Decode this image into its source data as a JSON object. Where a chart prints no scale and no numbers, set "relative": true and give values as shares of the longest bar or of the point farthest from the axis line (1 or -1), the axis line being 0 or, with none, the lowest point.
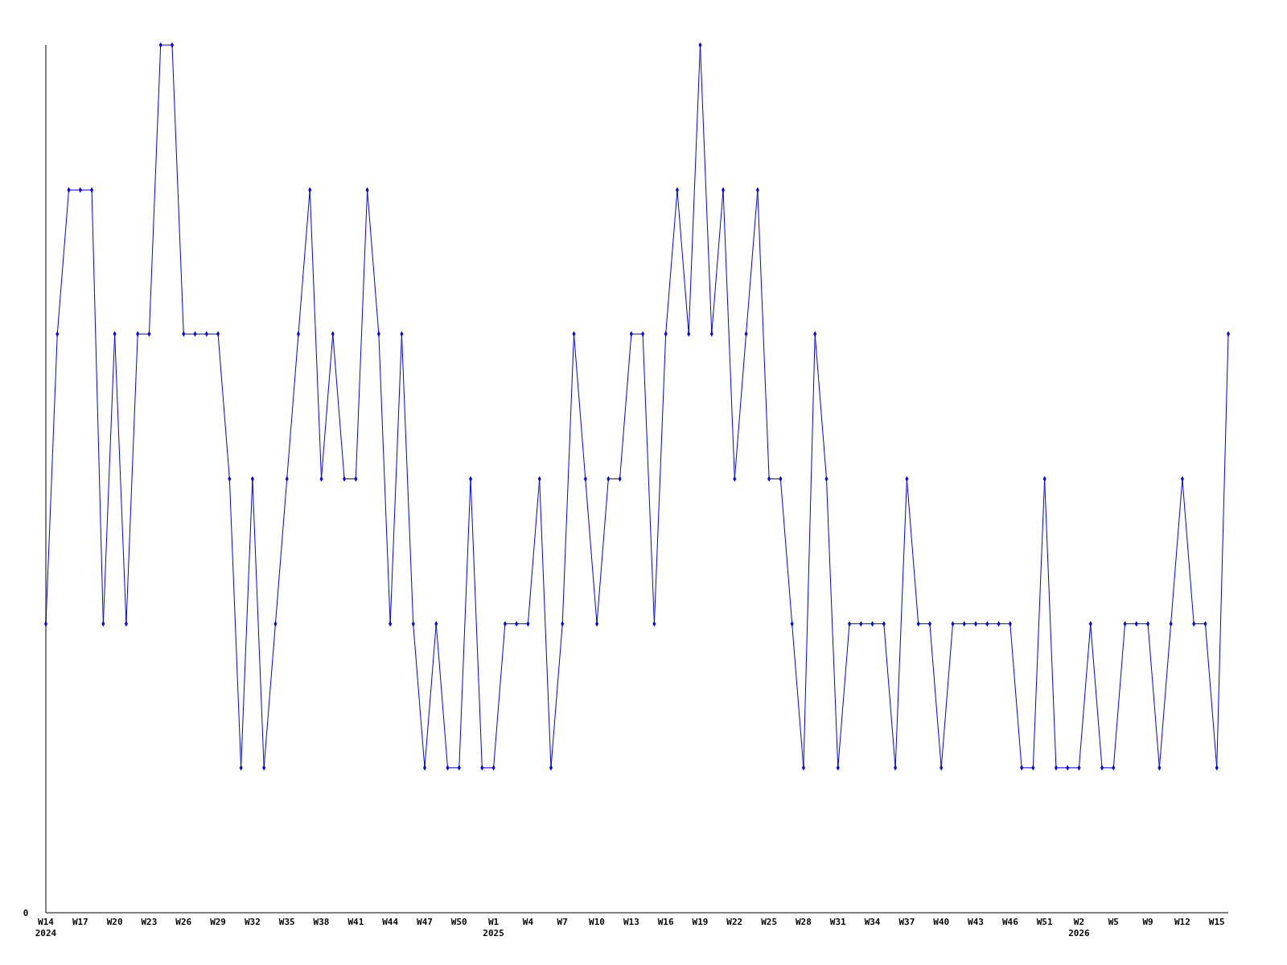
{
  "chart_data": {
    "type": "line",
    "relative": true,
    "marker": "diamond",
    "line_style": "solid",
    "annotations": [
      "0"
    ],
    "categories": [
      "W14\n2024",
      null,
      null,
      "W17",
      null,
      null,
      "W20",
      null,
      null,
      "W23",
      null,
      null,
      "W26",
      null,
      null,
      "W29",
      null,
      null,
      "W32",
      null,
      null,
      "W35",
      null,
      null,
      "W38",
      null,
      null,
      "W41",
      null,
      null,
      "W44",
      null,
      null,
      "W47",
      null,
      null,
      "W50",
      null,
      null,
      "W1\n2025",
      null,
      null,
      "W4",
      null,
      null,
      "W7",
      null,
      null,
      "W10",
      null,
      null,
      "W13",
      null,
      null,
      "W16",
      null,
      null,
      "W19",
      null,
      null,
      "W22",
      null,
      null,
      "W25",
      null,
      null,
      "W28",
      null,
      null,
      "W31",
      null,
      null,
      "W34",
      null,
      null,
      "W37",
      null,
      null,
      "W40",
      null,
      null,
      "W43",
      null,
      null,
      "W46",
      null,
      null,
      "W51",
      null,
      null,
      "W2\n2026",
      null,
      null,
      "W5",
      null,
      null,
      "W9",
      null,
      null,
      "W12",
      null,
      null,
      "W15",
      null
    ],
    "series": [
      {
        "color": "#0000ff",
        "values": [
          0.333,
          0.667,
          0.833,
          0.833,
          0.833,
          0.333,
          0.667,
          0.333,
          0.667,
          0.667,
          1,
          1,
          0.667,
          0.667,
          0.667,
          0.667,
          0.5,
          0.167,
          0.5,
          0.167,
          0.333,
          0.5,
          0.667,
          0.833,
          0.5,
          0.667,
          0.5,
          0.5,
          0.833,
          0.667,
          0.333,
          0.667,
          0.333,
          0.167,
          0.333,
          0.167,
          0.167,
          0.5,
          0.167,
          0.167,
          0.333,
          0.333,
          0.333,
          0.5,
          0.167,
          0.333,
          0.667,
          0.5,
          0.333,
          0.5,
          0.5,
          0.667,
          0.667,
          0.333,
          0.667,
          0.833,
          0.667,
          1,
          0.667,
          0.833,
          0.5,
          0.667,
          0.833,
          0.5,
          0.5,
          0.333,
          0.167,
          0.667,
          0.5,
          0.167,
          0.333,
          0.333,
          0.333,
          0.333,
          0.167,
          0.5,
          0.333,
          0.333,
          0.167,
          0.333,
          0.333,
          0.333,
          0.333,
          0.333,
          0.333,
          0.167,
          0.167,
          0.5,
          0.167,
          0.167,
          0.167,
          0.333,
          0.167,
          0.167,
          0.333,
          0.333,
          0.333,
          0.167,
          0.333,
          0.5,
          0.333,
          0.333,
          0.167,
          0.667
        ]
      }
    ]
  }
}
